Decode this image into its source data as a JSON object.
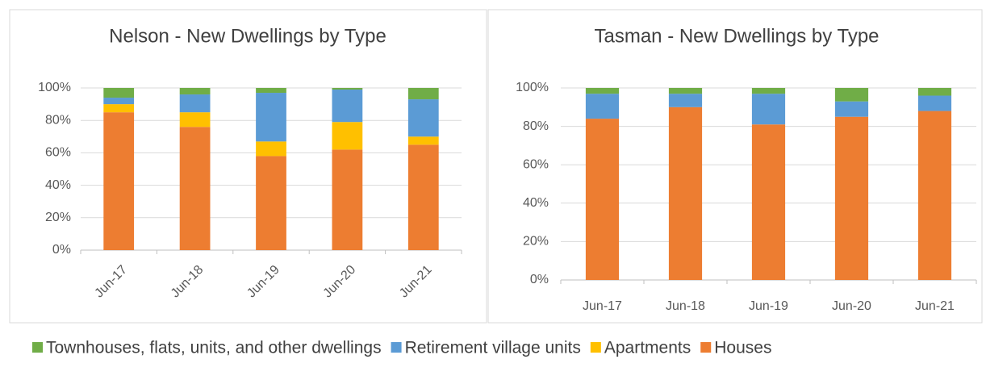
{
  "chart_data": [
    {
      "type": "stacked_bar",
      "title": "Nelson - New Dwellings by Type",
      "categories": [
        "Jun-17",
        "Jun-18",
        "Jun-19",
        "Jun-20",
        "Jun-21"
      ],
      "series": [
        {
          "name": "Houses",
          "color": "#ed7d31",
          "values": [
            85,
            76,
            58,
            62,
            65
          ]
        },
        {
          "name": "Apartments",
          "color": "#ffc000",
          "values": [
            5,
            9,
            9,
            17,
            5
          ]
        },
        {
          "name": "Retirement village units",
          "color": "#5b9bd5",
          "values": [
            4,
            11,
            30,
            20,
            23
          ]
        },
        {
          "name": "Townhouses, flats, units, and other dwellings",
          "color": "#70ad47",
          "values": [
            6,
            4,
            3,
            1,
            7
          ]
        }
      ],
      "ylim": [
        0,
        100
      ],
      "yticks": [
        {
          "value": 0,
          "label": "0%"
        },
        {
          "value": 20,
          "label": "20%"
        },
        {
          "value": 40,
          "label": "40%"
        },
        {
          "value": 60,
          "label": "60%"
        },
        {
          "value": 80,
          "label": "80%"
        },
        {
          "value": 100,
          "label": "100%"
        }
      ],
      "grid": true
    },
    {
      "type": "stacked_bar",
      "title": "Tasman - New Dwellings by Type",
      "categories": [
        "Jun-17",
        "Jun-18",
        "Jun-19",
        "Jun-20",
        "Jun-21"
      ],
      "series": [
        {
          "name": "Houses",
          "color": "#ed7d31",
          "values": [
            84,
            90,
            81,
            85,
            88
          ]
        },
        {
          "name": "Apartments",
          "color": "#ffc000",
          "values": [
            0,
            0,
            0,
            0,
            0
          ]
        },
        {
          "name": "Retirement village units",
          "color": "#5b9bd5",
          "values": [
            13,
            7,
            16,
            8,
            8
          ]
        },
        {
          "name": "Townhouses, flats, units, and other dwellings",
          "color": "#70ad47",
          "values": [
            3,
            3,
            3,
            7,
            4
          ]
        }
      ],
      "ylim": [
        0,
        100
      ],
      "yticks": [
        {
          "value": 0,
          "label": "0%"
        },
        {
          "value": 20,
          "label": "20%"
        },
        {
          "value": 40,
          "label": "40%"
        },
        {
          "value": 60,
          "label": "60%"
        },
        {
          "value": 80,
          "label": "80%"
        },
        {
          "value": 100,
          "label": "100%"
        }
      ],
      "grid": true
    }
  ]
}
